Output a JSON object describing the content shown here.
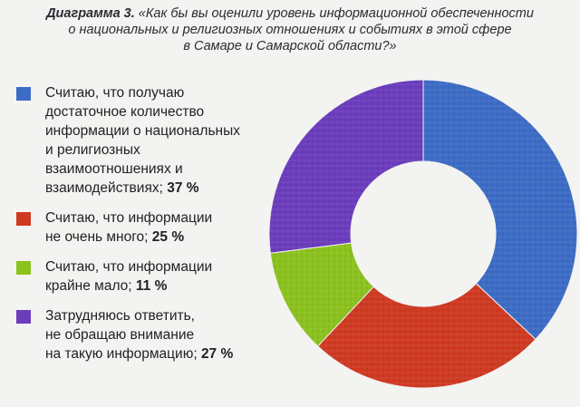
{
  "chart_data": {
    "type": "pie",
    "title_label": "Диаграмма 3.",
    "title": "«Как бы вы оценили уровень информационной обеспеченности о национальных и религиозных отношениях и событиях в этой сфере в Самаре и Самарской области?»",
    "title_lines": [
      "«Как бы вы оценили уровень информационной обеспеченности",
      "о национальных и религиозных отношениях и событиях в этой сфере",
      "в Самаре и Самарской области?»"
    ],
    "series": [
      {
        "label": "Считаю, что получаю достаточное количество информации о национальных и религиозных взаимоотношениях и взаимодействиях;",
        "lines": [
          "Считаю, что получаю",
          "достаточное количество",
          "информации о национальных",
          "и религиозных",
          "взаимоотношениях и",
          "взаимодействиях;"
        ],
        "value": 37,
        "value_text": "37 %",
        "color": "#3d6cc6"
      },
      {
        "label": "Считаю, что информации не очень много;",
        "lines": [
          "Считаю, что информации",
          "не очень много;"
        ],
        "value": 25,
        "value_text": "25 %",
        "color": "#d03a22"
      },
      {
        "label": "Считаю, что информации крайне мало;",
        "lines": [
          "Считаю, что информации",
          "крайне мало;"
        ],
        "value": 11,
        "value_text": "11 %",
        "color": "#8cc21e"
      },
      {
        "label": "Затрудняюсь ответить, не обращаю внимание на такую информацию;",
        "lines": [
          "Затрудняюсь ответить,",
          "не обращаю внимание",
          "на такую информацию;"
        ],
        "value": 27,
        "value_text": "27 %",
        "color": "#6b3dbd"
      }
    ],
    "legend_position": "left"
  }
}
